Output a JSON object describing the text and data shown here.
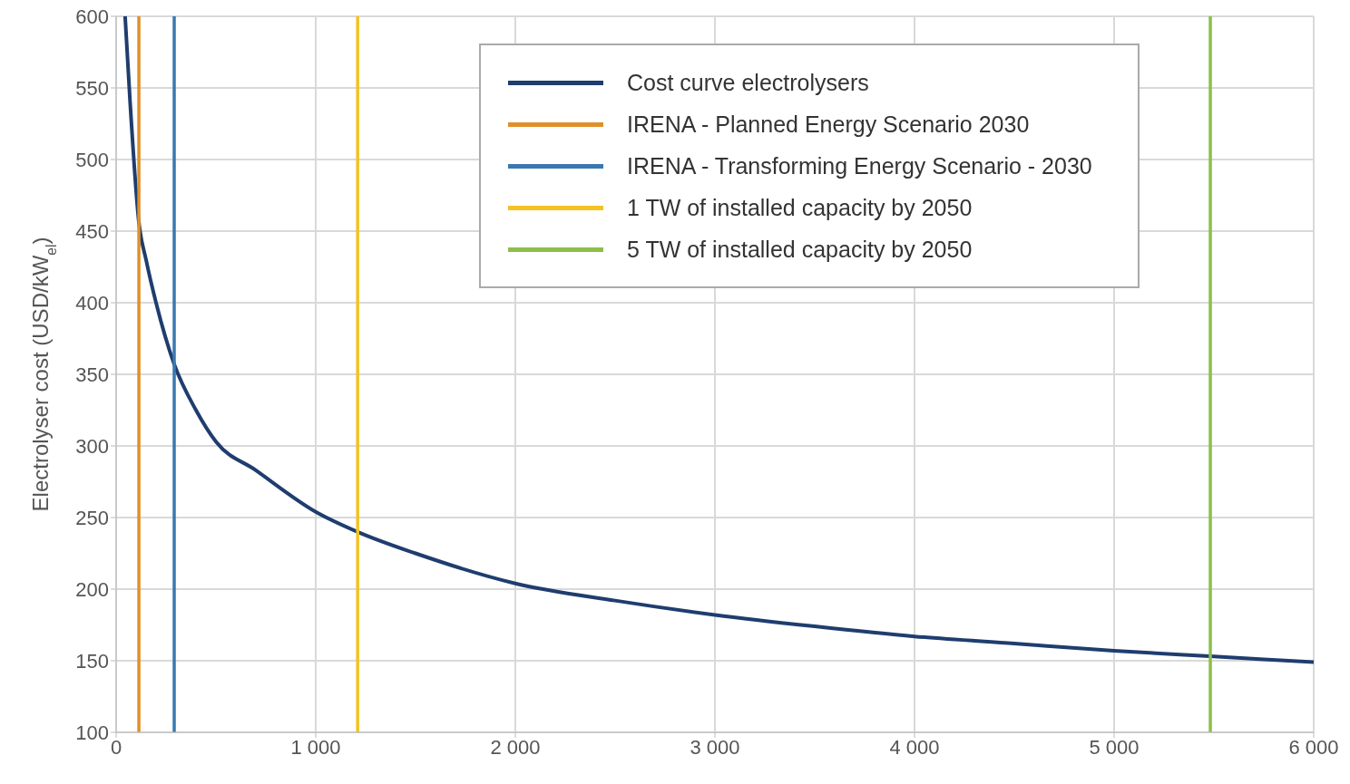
{
  "chart_data": {
    "type": "line",
    "ylabel": "Electrolyser cost (USD/kW$_{el}$)",
    "xlim": [
      0,
      6000
    ],
    "xticks": [
      0,
      {
        "value": 1000,
        "label": "1 000"
      },
      {
        "value": 2000,
        "label": "2 000"
      },
      {
        "value": 3000,
        "label": "3 000"
      },
      {
        "value": 4000,
        "label": "4 000"
      },
      {
        "value": 5000,
        "label": "5 000"
      },
      {
        "value": 6000,
        "label": "6 000"
      }
    ],
    "ylim": [
      100,
      600
    ],
    "yticks": [
      100,
      150,
      200,
      250,
      300,
      350,
      400,
      450,
      500,
      550,
      600
    ],
    "grid": true,
    "legend": "top right",
    "marker": "none",
    "line_style": "solid",
    "series": [
      {
        "name": "Cost curve electrolysers",
        "color": "#1f3d6e",
        "x": [
          45,
          70,
          114,
          150,
          200,
          291,
          400,
          500,
          700,
          1000,
          1210,
          1500,
          2000,
          2500,
          3000,
          3500,
          4000,
          4500,
          5000,
          5500,
          6000
        ],
        "values": [
          600,
          540,
          456,
          430,
          400,
          357,
          325,
          303,
          283,
          254,
          240,
          225,
          204,
          192,
          182,
          174,
          167,
          162,
          157,
          153,
          149
        ]
      },
      {
        "name": "IRENA - Planned Energy Scenario 2030",
        "color": "#e0902a",
        "x": [
          114,
          114
        ],
        "values": [
          100,
          600
        ]
      },
      {
        "name": "IRENA - Transforming Energy Scenario - 2030",
        "color": "#3a78b0",
        "x": [
          291,
          291
        ],
        "values": [
          100,
          600
        ]
      },
      {
        "name": "1 TW of installed capacity by 2050",
        "color": "#f2c323",
        "x": [
          1210,
          1210
        ],
        "values": [
          100,
          600
        ]
      },
      {
        "name": "5 TW of installed capacity by 2050",
        "color": "#8cbf4a",
        "x": [
          5482,
          5482
        ],
        "values": [
          100,
          600
        ]
      }
    ]
  }
}
